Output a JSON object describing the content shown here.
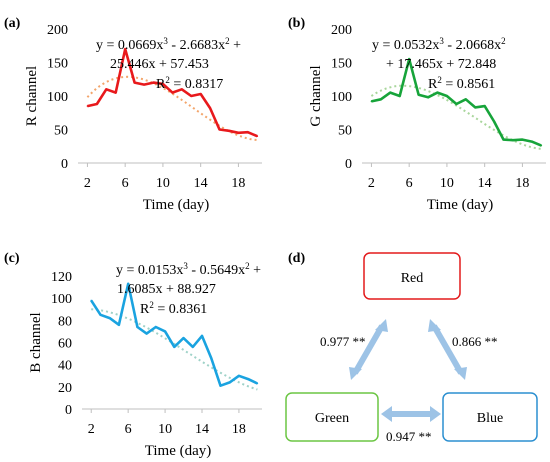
{
  "chart_data": [
    {
      "type": "line",
      "panel_label": "(a)",
      "ylabel": "R channel",
      "xlabel": "Time (day)",
      "xlim": [
        1,
        20.5
      ],
      "ylim": [
        0,
        200
      ],
      "xticks": [
        "2",
        "6",
        "10",
        "14",
        "18"
      ],
      "yticks": [
        "0",
        "50",
        "100",
        "150",
        "200"
      ],
      "x": [
        2,
        3,
        4,
        5,
        6,
        7,
        8,
        9,
        10,
        11,
        12,
        13,
        14,
        15,
        16,
        17,
        18,
        19,
        20
      ],
      "values": [
        85,
        88,
        110,
        105,
        170,
        120,
        117,
        120,
        118,
        105,
        110,
        100,
        103,
        82,
        50,
        48,
        45,
        46,
        40
      ],
      "line_color": "#e8191c",
      "trend": {
        "a": 0.0669,
        "b": -2.6683,
        "c": 25.446,
        "d": 57.453,
        "color": "#f3a56b"
      },
      "equation": [
        "y = 0.0669x³ - 2.6683x² +",
        "25.446x + 57.453",
        "R² = 0.8317"
      ]
    },
    {
      "type": "line",
      "panel_label": "(b)",
      "ylabel": "G channel",
      "xlabel": "Time (day)",
      "xlim": [
        1,
        20.5
      ],
      "ylim": [
        0,
        200
      ],
      "xticks": [
        "2",
        "6",
        "10",
        "14",
        "18"
      ],
      "yticks": [
        "0",
        "50",
        "100",
        "150",
        "200"
      ],
      "x": [
        2,
        3,
        4,
        5,
        6,
        7,
        8,
        9,
        10,
        11,
        12,
        13,
        14,
        15,
        16,
        17,
        18,
        19,
        20
      ],
      "values": [
        92,
        95,
        105,
        100,
        155,
        102,
        98,
        105,
        100,
        88,
        95,
        83,
        85,
        62,
        35,
        34,
        35,
        32,
        26
      ],
      "line_color": "#17a43a",
      "trend": {
        "a": 0.0532,
        "b": -2.0668,
        "c": 17.465,
        "d": 72.848,
        "color": "#a9d69c"
      },
      "equation": [
        "y = 0.0532x³ - 2.0668x²",
        "+ 17.465x + 72.848",
        "R² = 0.8561"
      ]
    },
    {
      "type": "line",
      "panel_label": "(c)",
      "ylabel": "B channel",
      "xlabel": "Time (day)",
      "xlim": [
        1,
        20.5
      ],
      "ylim": [
        0,
        120
      ],
      "xticks": [
        "2",
        "6",
        "10",
        "14",
        "18"
      ],
      "yticks": [
        "0",
        "20",
        "40",
        "60",
        "80",
        "100",
        "120"
      ],
      "x": [
        2,
        3,
        4,
        5,
        6,
        7,
        8,
        9,
        10,
        11,
        12,
        13,
        14,
        15,
        16,
        17,
        18,
        19,
        20
      ],
      "values": [
        98,
        85,
        82,
        76,
        113,
        74,
        68,
        74,
        70,
        56,
        64,
        56,
        66,
        46,
        21,
        24,
        30,
        27,
        23
      ],
      "line_color": "#1aa3e0",
      "trend": {
        "a": 0.0153,
        "b": -0.5649,
        "c": 1.6085,
        "d": 88.927,
        "color": "#9fd2c8"
      },
      "equation": [
        "y = 0.0153x³ - 0.5649x² +",
        "1.6085x + 88.927",
        "R² = 0.8361"
      ]
    }
  ],
  "diagram": {
    "panel_label": "(d)",
    "nodes": {
      "red": "Red",
      "green": "Green",
      "blue": "Blue"
    },
    "edges": {
      "red_green": "0.977 **",
      "red_blue": "0.866 **",
      "green_blue": "0.947 **"
    },
    "colors": {
      "red": "#e31a1c",
      "green": "#6cc644",
      "blue": "#2b8fd0",
      "arrow": "#9dc3e6"
    }
  }
}
